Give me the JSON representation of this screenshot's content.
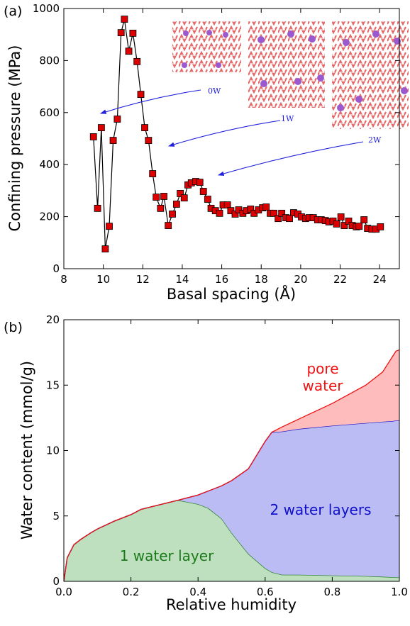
{
  "chart_data": [
    {
      "type": "line",
      "panel_label": "(a)",
      "x_label": "Basal spacing (Å)",
      "y_label": "Confining pressure (MPa)",
      "xlim": [
        8,
        25
      ],
      "ylim": [
        0,
        1000
      ],
      "xticks": [
        8,
        10,
        12,
        14,
        16,
        18,
        20,
        22,
        24
      ],
      "yticks": [
        0,
        200,
        400,
        600,
        800,
        1000
      ],
      "marker_color": "#dd0000",
      "line_color": "#000000",
      "annotations": [
        "0W",
        "1W",
        "2W"
      ],
      "annotation_color": "#2222dd",
      "x": [
        9.5,
        9.71,
        9.9,
        10.1,
        10.3,
        10.5,
        10.71,
        10.9,
        11.07,
        11.29,
        11.5,
        11.71,
        11.9,
        12.1,
        12.29,
        12.5,
        12.68,
        12.9,
        13.07,
        13.29,
        13.5,
        13.71,
        13.9,
        14.1,
        14.29,
        14.46,
        14.68,
        14.89,
        15.07,
        15.29,
        15.46,
        15.68,
        15.89,
        16.07,
        16.29,
        16.46,
        16.68,
        16.86,
        17.07,
        17.25,
        17.46,
        17.64,
        17.86,
        18.07,
        18.25,
        18.46,
        18.64,
        18.86,
        19.04,
        19.25,
        19.43,
        19.64,
        19.86,
        20.04,
        20.25,
        20.43,
        20.64,
        20.86,
        21.04,
        21.25,
        21.43,
        21.64,
        21.82,
        22.04,
        22.21,
        22.43,
        22.61,
        22.82,
        22.96,
        23.21,
        23.39,
        23.61,
        23.82,
        24.04
      ],
      "values": [
        507,
        232,
        542,
        76,
        163,
        493,
        575,
        907,
        959,
        836,
        905,
        796,
        670,
        542,
        493,
        365,
        275,
        232,
        278,
        166,
        210,
        248,
        289,
        272,
        322,
        330,
        335,
        332,
        297,
        267,
        232,
        223,
        213,
        245,
        245,
        223,
        210,
        226,
        213,
        223,
        229,
        213,
        226,
        234,
        237,
        213,
        213,
        193,
        213,
        196,
        193,
        215,
        210,
        199,
        193,
        196,
        196,
        188,
        188,
        185,
        180,
        183,
        172,
        199,
        166,
        183,
        166,
        161,
        163,
        188,
        155,
        152,
        152,
        161
      ]
    },
    {
      "type": "area",
      "stacked": true,
      "panel_label": "(b)",
      "x_label": "Relative humidity",
      "y_label": "Water content (mmol/g)",
      "xlim": [
        0,
        1
      ],
      "ylim": [
        0,
        20
      ],
      "xticks": [
        {
          "value": 0,
          "label": "0.0"
        },
        0.2,
        0.4,
        0.6,
        0.8,
        {
          "value": 1,
          "label": "1.0"
        }
      ],
      "yticks": [
        0,
        5,
        10,
        15,
        20
      ],
      "x": [
        0,
        0.01,
        0.03,
        0.05,
        0.08,
        0.1,
        0.15,
        0.2,
        0.23,
        0.3,
        0.34,
        0.4,
        0.43,
        0.47,
        0.5,
        0.55,
        0.6,
        0.62,
        0.65,
        0.7,
        0.8,
        0.9,
        0.95,
        0.98,
        0.99,
        1
      ],
      "series": [
        {
          "name": "1 water layer",
          "color": "#1a7a1a",
          "fill": "#bfe0bf",
          "values": [
            0,
            1.8,
            2.8,
            3.2,
            3.7,
            4.0,
            4.6,
            5.1,
            5.5,
            5.95,
            6.2,
            5.9,
            5.6,
            4.8,
            3.7,
            2.1,
            1.0,
            0.7,
            0.5,
            0.5,
            0.45,
            0.4,
            0.35,
            0.32,
            0.3,
            0.3
          ]
        },
        {
          "name": "2 water layers",
          "color": "#1010cc",
          "fill": "#bcbcf4",
          "values": [
            0,
            0,
            0,
            0,
            0,
            0,
            0,
            0,
            0,
            0,
            0,
            0.7,
            1.3,
            2.5,
            4.0,
            6.5,
            9.7,
            10.7,
            10.95,
            11.15,
            11.45,
            11.7,
            11.85,
            11.93,
            12.0,
            12.0
          ]
        },
        {
          "name": "pore water",
          "color": "#ee1111",
          "fill": "#ffbcbc",
          "values": [
            0,
            0,
            0,
            0,
            0,
            0,
            0,
            0,
            0,
            0,
            0,
            0,
            0,
            0,
            0,
            0,
            0,
            0,
            0.35,
            0.75,
            1.7,
            2.9,
            3.8,
            4.95,
            5.3,
            5.4
          ]
        }
      ]
    }
  ]
}
